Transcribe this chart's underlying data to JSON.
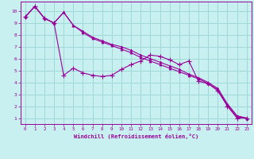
{
  "xlabel": "Windchill (Refroidissement éolien,°C)",
  "background_color": "#c8f0f0",
  "grid_color": "#a0d8d8",
  "line_color": "#990099",
  "xlim": [
    -0.5,
    23.5
  ],
  "ylim": [
    0.5,
    10.8
  ],
  "xticks": [
    0,
    1,
    2,
    3,
    4,
    5,
    6,
    7,
    8,
    9,
    10,
    11,
    12,
    13,
    14,
    15,
    16,
    17,
    18,
    19,
    20,
    21,
    22,
    23
  ],
  "yticks": [
    1,
    2,
    3,
    4,
    5,
    6,
    7,
    8,
    9,
    10
  ],
  "series1_x": [
    0,
    1,
    2,
    3,
    4,
    5,
    6,
    7,
    8,
    9,
    10,
    11,
    12,
    13,
    14,
    15,
    16,
    17,
    18,
    19,
    20,
    21,
    22,
    23
  ],
  "series1_y": [
    9.5,
    10.4,
    9.4,
    9.0,
    9.9,
    8.8,
    8.3,
    7.8,
    7.5,
    7.2,
    7.0,
    6.7,
    6.3,
    6.0,
    5.7,
    5.4,
    5.1,
    4.7,
    4.4,
    4.0,
    3.5,
    2.2,
    1.2,
    1.0
  ],
  "series2_x": [
    0,
    1,
    2,
    3,
    4,
    5,
    6,
    7,
    8,
    9,
    10,
    11,
    12,
    13,
    14,
    15,
    16,
    17,
    18,
    19,
    20,
    21,
    22,
    23
  ],
  "series2_y": [
    9.5,
    10.4,
    9.4,
    9.0,
    9.9,
    8.8,
    8.2,
    7.7,
    7.4,
    7.1,
    6.8,
    6.5,
    6.1,
    5.8,
    5.5,
    5.2,
    4.9,
    4.6,
    4.3,
    3.9,
    3.4,
    2.1,
    1.1,
    1.0
  ],
  "series3_x": [
    0,
    1,
    2,
    3,
    4,
    5,
    6,
    7,
    8,
    9,
    10,
    11,
    12,
    13,
    14,
    15,
    16,
    17,
    18,
    19,
    20,
    21,
    22,
    23
  ],
  "series3_y": [
    9.5,
    10.4,
    9.4,
    9.0,
    4.6,
    5.2,
    4.8,
    4.6,
    4.5,
    4.6,
    5.1,
    5.5,
    5.8,
    6.3,
    6.2,
    5.9,
    5.5,
    5.8,
    4.1,
    3.9,
    3.3,
    2.0,
    1.0,
    1.0
  ]
}
